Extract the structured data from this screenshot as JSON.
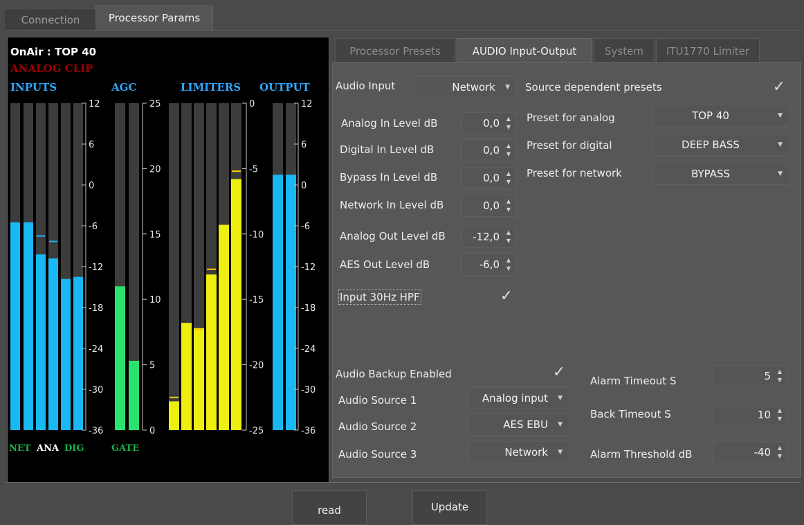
{
  "top_tabs": [
    {
      "label": "Connection",
      "active": false
    },
    {
      "label": "Processor Params",
      "active": true
    }
  ],
  "meter": {
    "onair": "OnAir : TOP 40",
    "clip": "ANALOG CLIP",
    "headers": {
      "inputs": "INPUTS",
      "agc": "AGC",
      "limiters": "LIMITERS",
      "output": "OUTPUT"
    },
    "footer": {
      "net": "NET",
      "ana": "ANA",
      "dig": "DIG",
      "gate": "GATE"
    },
    "inputs_scale": [
      "12",
      "6",
      "0",
      "-6",
      "-12",
      "-18",
      "-24",
      "-30",
      "-36"
    ],
    "agc_scale": [
      "25",
      "20",
      "15",
      "10",
      "5",
      "0"
    ],
    "limiters_scale": [
      "0",
      "-5",
      "-10",
      "-15",
      "-20",
      "-25"
    ],
    "output_scale": [
      "12",
      "6",
      "0",
      "-6",
      "-12",
      "-18",
      "-24",
      "-30",
      "-36"
    ],
    "input_levels_db": [
      -5.5,
      -5.5,
      -10.2,
      -10.8,
      -13.8,
      -13.5
    ],
    "input_peaks_db": [
      null,
      null,
      -7.5,
      -8.3,
      null,
      null
    ],
    "agc_levels": [
      11,
      5.3
    ],
    "limiter_levels_db": [
      -22.8,
      -16.8,
      -17.2,
      -13.1,
      -9.3,
      -5.8
    ],
    "limiter_peaks_db": [
      -22.5,
      null,
      -17.3,
      -12.7,
      null,
      -5.2
    ],
    "output_levels_db": [
      1.5,
      1.5
    ],
    "colors": {
      "inputs": "#19b7f4",
      "agc": "#2ae36e",
      "limiters": "#eeee10",
      "output": "#19b7f4",
      "track": "#3c3c3c",
      "peak": "#ffd000"
    }
  },
  "inner_tabs": [
    {
      "label": "Processor Presets",
      "active": false
    },
    {
      "label": "AUDIO Input-Output",
      "active": true
    },
    {
      "label": "System",
      "active": false
    },
    {
      "label": "ITU1770 Limiter",
      "active": false
    }
  ],
  "audio_input": {
    "label": "Audio Input",
    "value": "Network"
  },
  "source_dependent": {
    "label": "Source dependent presets",
    "checked": true
  },
  "levels": [
    {
      "label": "Analog In Level dB",
      "value": "0,0"
    },
    {
      "label": "Digital In Level dB",
      "value": "0,0"
    },
    {
      "label": "Bypass In Level dB",
      "value": "0,0"
    },
    {
      "label": "Network In Level dB",
      "value": "0,0"
    },
    {
      "label": "Analog Out Level  dB",
      "value": "-12,0"
    },
    {
      "label": "AES Out Level dB",
      "value": "-6,0"
    }
  ],
  "hpf": {
    "label": "Input 30Hz HPF",
    "checked": true
  },
  "presets": [
    {
      "label": "Preset for analog",
      "value": "TOP 40"
    },
    {
      "label": "Preset for digital",
      "value": "DEEP BASS"
    },
    {
      "label": "Preset for network",
      "value": "BYPASS"
    }
  ],
  "backup": {
    "label": "Audio Backup Enabled",
    "checked": true
  },
  "sources": [
    {
      "label": "Audio Source 1",
      "value": "Analog input"
    },
    {
      "label": "Audio Source 2",
      "value": "AES EBU"
    },
    {
      "label": "Audio Source 3",
      "value": "Network"
    }
  ],
  "alarms": [
    {
      "label": "Alarm Timeout S",
      "value": "5"
    },
    {
      "label": "Back Timeout S",
      "value": "10"
    },
    {
      "label": "Alarm Threshold dB",
      "value": "-40"
    }
  ],
  "buttons": {
    "read": "read",
    "update": "Update"
  }
}
